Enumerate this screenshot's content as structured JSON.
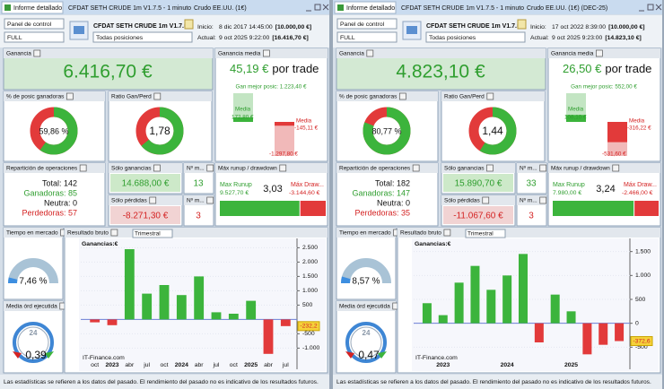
{
  "panels": [
    {
      "tab": "Informe detallado",
      "title": "CFDAT SETH CRUDE 1m V1.7.5 - 1 minuto",
      "market": "Crudo EE.UU. (1€)",
      "panel_select": "Panel de control",
      "mode": "FULL",
      "strategy": "CFDAT SETH CRUDE 1m V1.7.5.",
      "positions": "Todas posiciones",
      "start_label": "Inicio:",
      "start_date": "8 dic 2017 14:45:00",
      "start_capital": "[10.000,00 €]",
      "current_label": "Actual:",
      "current_date": "9 oct 2025 9:22:00",
      "current_capital": "[16.416,70 €]",
      "labels": {
        "profit": "Ganancia",
        "avg": "Ganancia media",
        "win_pct": "% de posic ganadoras",
        "ratio": "Ratio Gan/Perd",
        "distribution": "Repartición de operaciones",
        "wins_only": "Sólo ganancias",
        "count_win": "Nº m...",
        "losses_only": "Sólo pérdidas",
        "count_loss": "Nº m...",
        "runup": "Máx runup / drawdown",
        "time": "Tiempo en mercado",
        "gross": "Resultado bruto",
        "period": "Trimestral",
        "exec": "Media órd ejecutida"
      },
      "profit": "6.416,70 €",
      "avg_trade": "45,19 €",
      "per_trade": "por trade",
      "best": "Gan mejor posic: 1.223,40 €",
      "avg_win_label": "Media",
      "avg_win": {
        "value": 172.8,
        "label": "172,80 €"
      },
      "avg_loss_label": "Media",
      "avg_loss": {
        "value": -145.11,
        "label": "-145,11 €"
      },
      "worst": {
        "value": -1297.8,
        "label": "-1.297,80 €"
      },
      "win_pct": {
        "value": 59.86,
        "label": "59,86 %"
      },
      "ratio": {
        "value": 1.78,
        "label": "1,78"
      },
      "distribution": [
        "Total: 142",
        "Ganadoras: 85",
        "Neutra: 0",
        "Perdedoras: 57"
      ],
      "wins_total": "14.688,00 €",
      "wins_count": "13",
      "losses_total": "-8.271,30 €",
      "losses_count": "3",
      "runup_label": "Max Runup",
      "runup": {
        "value": 9527.7,
        "label": "9.527,70 €"
      },
      "runup_ratio": "3,03",
      "drawdown_label": "Máx Draw...",
      "drawdown": {
        "value": -3144.6,
        "label": "-3.144,60 €"
      },
      "time": {
        "value": 7.46,
        "label": "7,46 %"
      },
      "exec_clock": "24",
      "exec_value": "0,39",
      "chart": {
        "label": "Ganancias:€",
        "source": "IT-Finance.com",
        "categories": [
          "oct",
          "2023",
          "abr",
          "jul",
          "oct",
          "2024",
          "abr",
          "jul",
          "oct",
          "2025",
          "abr",
          "jul"
        ],
        "values": [
          -100,
          -200,
          2450,
          900,
          1200,
          850,
          1500,
          250,
          200,
          650,
          -1200,
          -232.2
        ],
        "last_label": "-232,2",
        "ylim": [
          -1300,
          2700
        ],
        "yticks": [
          {
            "value": 2500,
            "label": "2.500"
          },
          {
            "value": 2000,
            "label": "2.000"
          },
          {
            "value": 1500,
            "label": "1.500"
          },
          {
            "value": 1000,
            "label": "1.000"
          },
          500,
          -500,
          {
            "value": -1000,
            "label": "-1.000"
          }
        ]
      },
      "status": "Las estadísticas se refieren a los datos del pasado. El rendimiento del pasado no es indicativo de los resultados futuros."
    },
    {
      "tab": "Informe detallado",
      "title": "CFDAT SETH CRUDE 1m V1.7.5 - 1 minuto",
      "market": "Crudo EE.UU. (1€) (DEC-25)",
      "panel_select": "Panel de control",
      "mode": "FULL",
      "strategy": "CFDAT SETH CRUDE 1m V1.7.5.",
      "positions": "Todas posiciones",
      "start_label": "Inicio:",
      "start_date": "17 oct 2022 8:39:00",
      "start_capital": "[10.000,00 €]",
      "current_label": "Actual:",
      "current_date": "9 oct 2025 9:23:00",
      "current_capital": "[14.823,10 €]",
      "labels": {
        "profit": "Ganancia",
        "avg": "Ganancia media",
        "win_pct": "% de posic ganadoras",
        "ratio": "Ratio Gan/Perd",
        "distribution": "Repartición de operaciones",
        "wins_only": "Sólo ganancias",
        "count_win": "Nº m...",
        "losses_only": "Sólo pérdidas",
        "count_loss": "Nº m...",
        "runup": "Máx runup / drawdown",
        "time": "Tiempo en mercado",
        "gross": "Resultado bruto",
        "period": "Trimestral",
        "exec": "Media órd ejecutida"
      },
      "profit": "4.823,10 €",
      "avg_trade": "26,50 €",
      "per_trade": "por trade",
      "best": "Gan mejor posic: 552,00 €",
      "avg_win_label": "Media",
      "avg_win": {
        "value": 108.1,
        "label": "108,10 €"
      },
      "avg_loss_label": "Media",
      "avg_loss": {
        "value": -316.22,
        "label": "-316,22 €"
      },
      "worst": {
        "value": -531.6,
        "label": "-531,60 €"
      },
      "win_pct": {
        "value": 80.77,
        "label": "80,77 %"
      },
      "ratio": {
        "value": 1.44,
        "label": "1,44"
      },
      "distribution": [
        "Total: 182",
        "Ganadoras: 147",
        "Neutra: 0",
        "Perdedoras: 35"
      ],
      "wins_total": "15.890,70 €",
      "wins_count": "33",
      "losses_total": "-11.067,60 €",
      "losses_count": "3",
      "runup_label": "Max Runup",
      "runup": {
        "value": 7980,
        "label": "7.980,00 €"
      },
      "runup_ratio": "3,24",
      "drawdown_label": "Máx Draw...",
      "drawdown": {
        "value": -2466,
        "label": "-2.466,00 €"
      },
      "time": {
        "value": 8.57,
        "label": "8,57 %"
      },
      "exec_clock": "24",
      "exec_value": "0,47",
      "chart": {
        "label": "Ganancias:€",
        "source": "IT-Finance.com",
        "categories": [
          null,
          "2023",
          null,
          null,
          null,
          "2024",
          null,
          null,
          null,
          "2025",
          null,
          null,
          null
        ],
        "values": [
          420,
          170,
          850,
          1200,
          700,
          1000,
          1450,
          -400,
          600,
          250,
          -650,
          -450,
          -372.6
        ],
        "last_label": "-372,6",
        "ylim": [
          -700,
          1700
        ],
        "yticks": [
          {
            "value": 1500,
            "label": "1.500"
          },
          {
            "value": 1000,
            "label": "1.000"
          },
          500,
          0,
          -500
        ]
      },
      "status": "Las estadísticas se refieren a los datos del pasado. El rendimiento del pasado no es indicativo de los resultados futuros."
    }
  ]
}
